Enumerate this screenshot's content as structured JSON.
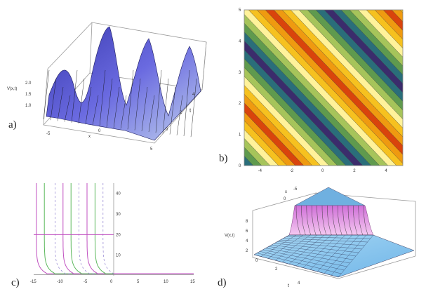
{
  "chart_data": [
    {
      "panel": "a)",
      "type": "surface",
      "zlabel": "V(x,t)",
      "xlabel": "x",
      "ylabel": "t",
      "z_ticks": [
        "1.0",
        "1.5",
        "2.0"
      ],
      "x_ticks": [
        "-5",
        "0",
        "5"
      ],
      "t_ticks": [
        "0",
        "2",
        "4"
      ]
    },
    {
      "panel": "b)",
      "type": "contour",
      "x_ticks": [
        "-4",
        "-2",
        "0",
        "2",
        "4"
      ],
      "y_ticks": [
        "0",
        "1",
        "2",
        "3",
        "4",
        "5"
      ],
      "xlim": [
        -5,
        5
      ],
      "ylim": [
        0,
        5
      ],
      "band_colors": [
        "#3b2c6c",
        "#2a6e7a",
        "#5f9a4e",
        "#a6c45a",
        "#fff29a",
        "#f6c11f",
        "#ef9a10",
        "#d9440c",
        "#ef9a10",
        "#f6c11f",
        "#fff29a",
        "#a6c45a",
        "#5f9a4e",
        "#2a6e7a"
      ]
    },
    {
      "panel": "c)",
      "type": "line",
      "x_ticks": [
        "-15",
        "-10",
        "-5",
        "0",
        "5",
        "10",
        "15"
      ],
      "y_ticks": [
        "10",
        "20",
        "30",
        "40"
      ],
      "xlim": [
        -15,
        15
      ],
      "ylim": [
        0,
        45
      ],
      "series_colors": [
        "#c050c0",
        "#5cb85c",
        "#9080d0"
      ]
    },
    {
      "panel": "d)",
      "type": "surface",
      "zlabel": "V(x,t)",
      "xlabel": "x",
      "ylabel": "t",
      "z_ticks": [
        "2",
        "4",
        "6",
        "8"
      ],
      "x_ticks": [
        "-5",
        "0"
      ],
      "t_ticks": [
        "0",
        "2",
        "4"
      ]
    }
  ]
}
